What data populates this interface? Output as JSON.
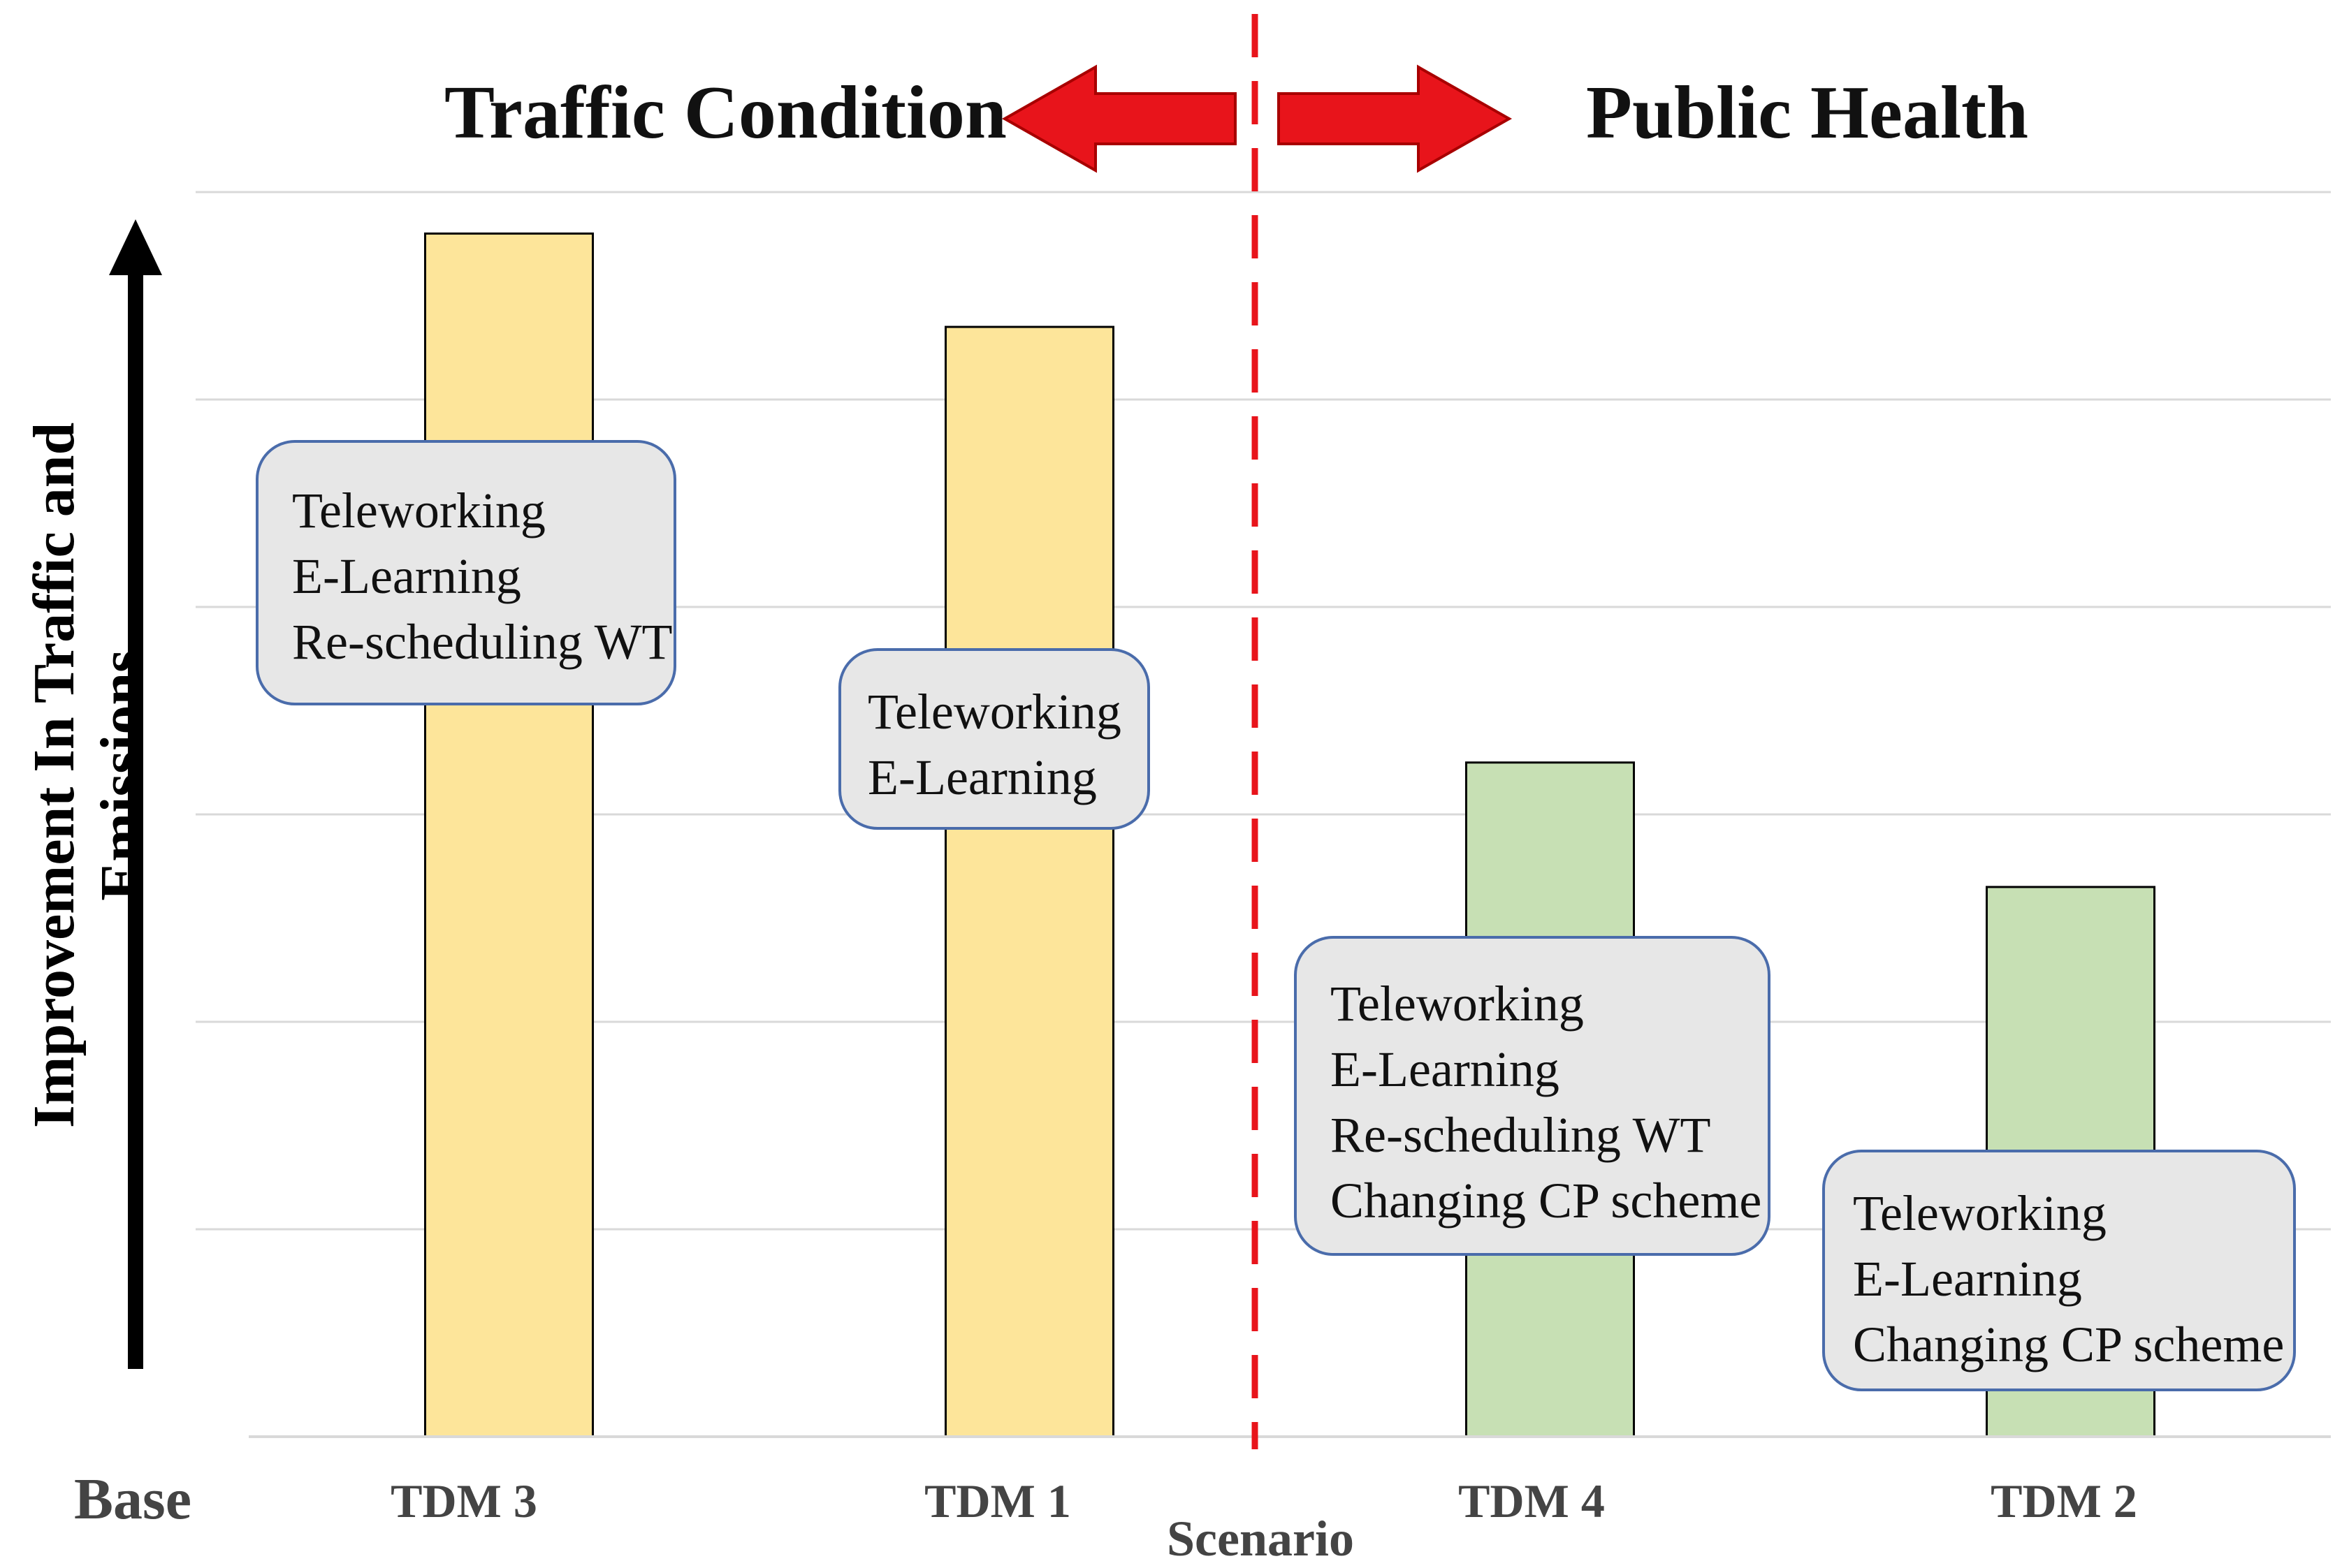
{
  "chart_data": {
    "type": "bar",
    "title": "",
    "xlabel": "Scenario",
    "ylabel": "Improvement In Traffic and Emissions",
    "ylim": [
      0,
      6
    ],
    "grid": true,
    "base_label": "Base",
    "categories": [
      "TDM 3",
      "TDM 1",
      "TDM 4",
      "TDM 2"
    ],
    "values": [
      5.8,
      5.35,
      3.25,
      2.65
    ],
    "colors": [
      "#fde59a",
      "#fde59a",
      "#c7e0b4",
      "#c7e0b4"
    ],
    "groups": [
      {
        "title": "Traffic Condition",
        "categories": [
          "TDM 3",
          "TDM 1"
        ],
        "arrow": "left"
      },
      {
        "title": "Public Health",
        "categories": [
          "TDM 4",
          "TDM 2"
        ],
        "arrow": "right"
      }
    ],
    "annotations": [
      {
        "category": "TDM 3",
        "lines": [
          "Teleworking",
          "E-Learning",
          "Re-scheduling WT"
        ]
      },
      {
        "category": "TDM 1",
        "lines": [
          "Teleworking",
          "E-Learning"
        ]
      },
      {
        "category": "TDM 4",
        "lines": [
          "Teleworking",
          "E-Learning",
          "Re-scheduling WT",
          "Changing CP scheme"
        ]
      },
      {
        "category": "TDM 2",
        "lines": [
          "Teleworking",
          "E-Learning",
          "Changing CP scheme"
        ]
      }
    ],
    "divider_color": "#e8141b",
    "arrow_color": "#e8141b"
  }
}
